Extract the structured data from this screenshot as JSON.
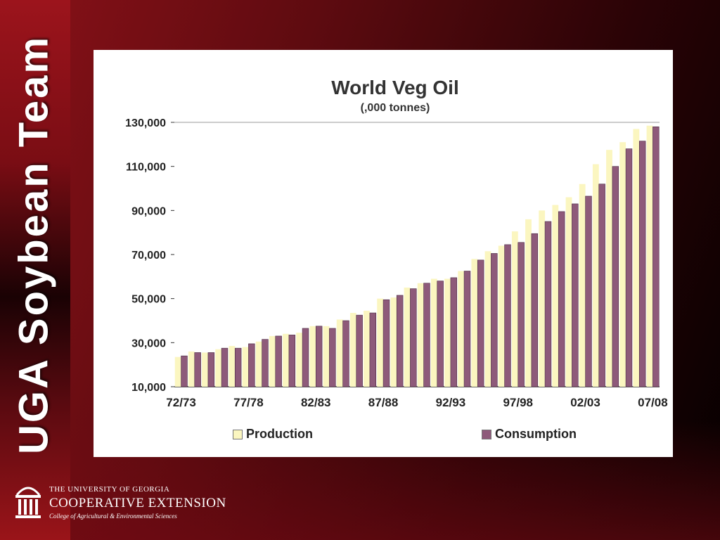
{
  "sidebar": {
    "title": "UGA Soybean Team"
  },
  "footer": {
    "line1": "THE UNIVERSITY OF GEORGIA",
    "line2": "COOPERATIVE EXTENSION",
    "line3": "College of Agricultural & Environmental Sciences"
  },
  "colors": {
    "production": "#fbf6c0",
    "consumption": "#8e5a7a",
    "background_red": "#8a1118"
  },
  "chart_data": {
    "type": "bar",
    "title": "World Veg Oil",
    "subtitle": "(,000 tonnes)",
    "xlabel": "",
    "ylabel": "",
    "ylim": [
      10000,
      130000
    ],
    "yticks": [
      "130,000",
      "110,000",
      "90,000",
      "70,000",
      "50,000",
      "30,000",
      "10,000"
    ],
    "ytick_values": [
      130000,
      110000,
      90000,
      70000,
      50000,
      30000,
      10000
    ],
    "xtick_labels": [
      "72/73",
      "77/78",
      "82/83",
      "87/88",
      "92/93",
      "97/98",
      "02/03",
      "07/08"
    ],
    "xtick_indices": [
      0,
      5,
      10,
      15,
      20,
      25,
      30,
      35
    ],
    "categories": [
      "72/73",
      "73/74",
      "74/75",
      "75/76",
      "76/77",
      "77/78",
      "78/79",
      "79/80",
      "80/81",
      "81/82",
      "82/83",
      "83/84",
      "84/85",
      "85/86",
      "86/87",
      "87/88",
      "88/89",
      "89/90",
      "90/91",
      "91/92",
      "92/93",
      "93/94",
      "94/95",
      "95/96",
      "96/97",
      "97/98",
      "98/99",
      "99/00",
      "00/01",
      "01/02",
      "02/03",
      "03/04",
      "04/05",
      "05/06",
      "06/07",
      "07/08"
    ],
    "series": [
      {
        "name": "Production",
        "values": [
          23500,
          26000,
          25500,
          27000,
          28500,
          28000,
          30500,
          33000,
          34000,
          34500,
          37500,
          37500,
          40500,
          43500,
          44500,
          50000,
          50500,
          55000,
          57000,
          59000,
          59000,
          62500,
          68000,
          71500,
          74000,
          80500,
          86000,
          90000,
          92500,
          96000,
          102000,
          111000,
          117500,
          121000,
          127000,
          128500
        ]
      },
      {
        "name": "Consumption",
        "values": [
          24000,
          25500,
          25500,
          27500,
          27500,
          29500,
          31500,
          33000,
          33500,
          36500,
          37500,
          36500,
          40000,
          42500,
          43500,
          49500,
          51500,
          54500,
          57000,
          58000,
          59500,
          62500,
          67500,
          70500,
          74500,
          75500,
          79500,
          85000,
          89500,
          93000,
          96500,
          102000,
          110000,
          118000,
          121500,
          128000
        ]
      }
    ]
  }
}
